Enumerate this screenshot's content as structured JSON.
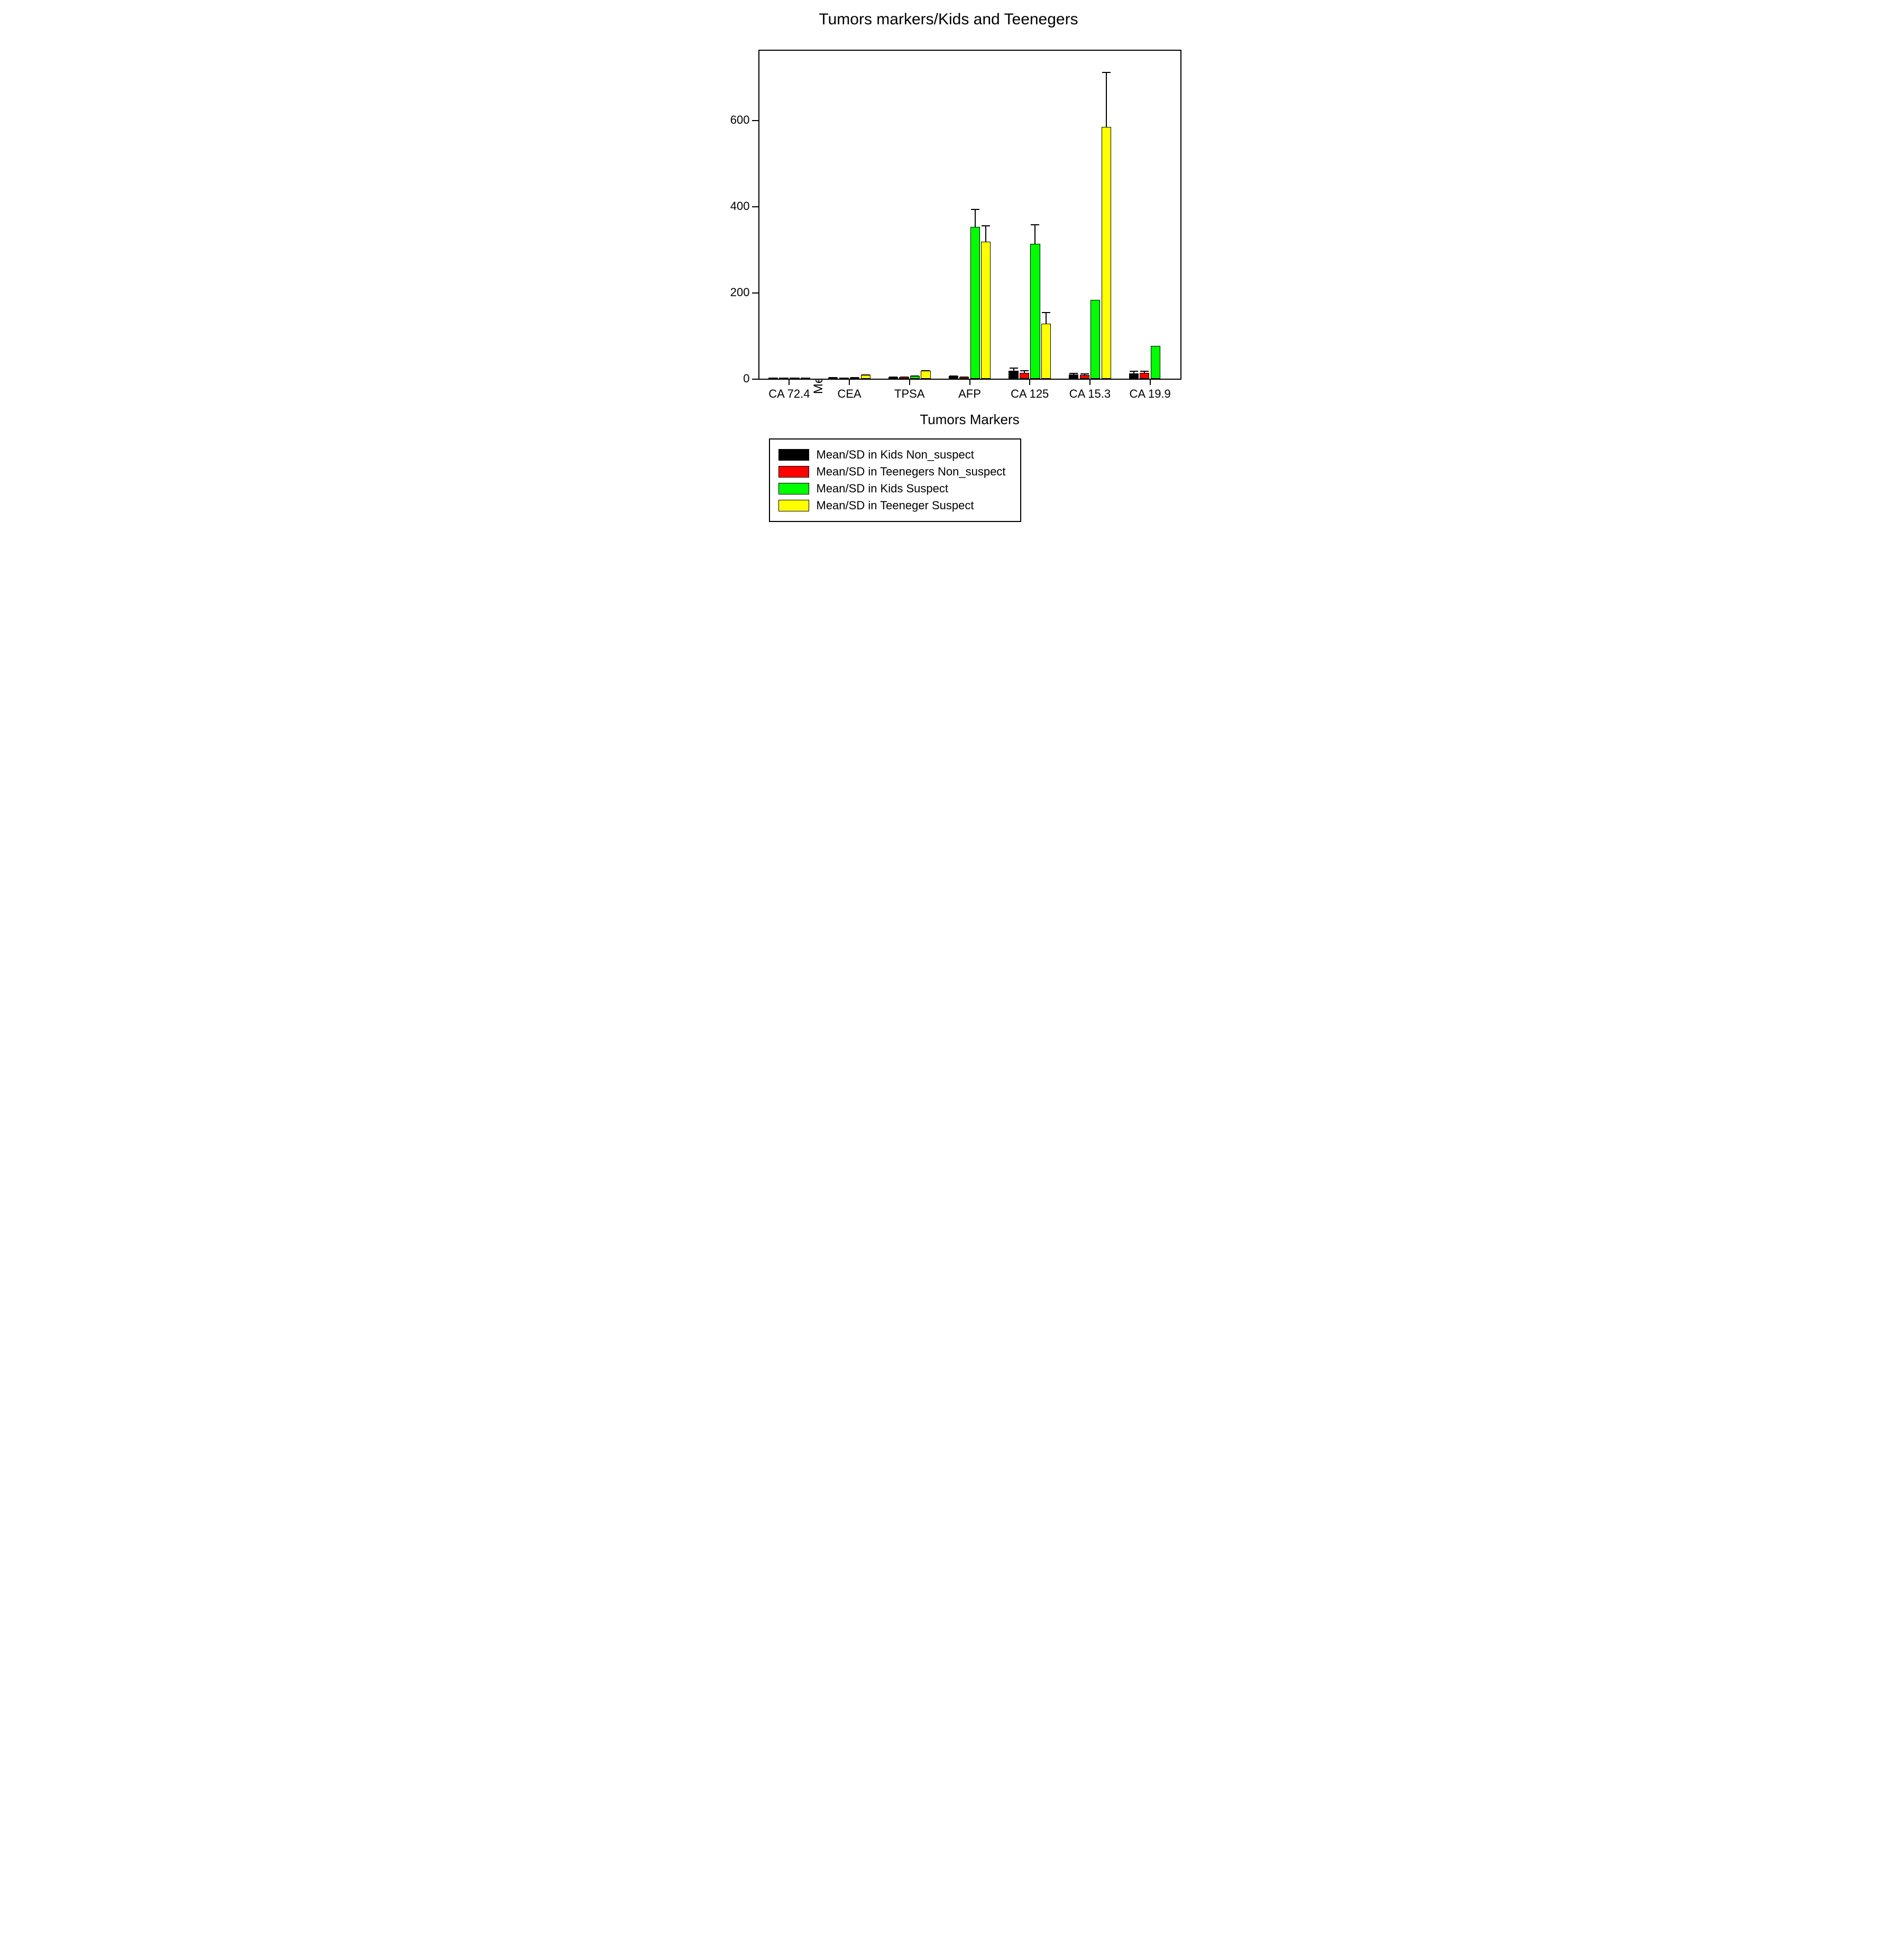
{
  "title": "Tumors markers/Kids and Teenegers",
  "ylabel": "Means/SD for groups(Kids/Teenegers)",
  "xlabel": "Tumors Markers",
  "yAxis": {
    "min": 0,
    "max": 760,
    "ticks": [
      0,
      200,
      400,
      600
    ]
  },
  "categories": [
    "CA 72.4",
    "CEA",
    "TPSA",
    "AFP",
    "CA 125",
    "CA 15.3",
    "CA 19.9"
  ],
  "series": [
    {
      "name": "Mean/SD in Kids Non_suspect",
      "color": "#000000",
      "values": [
        1,
        3,
        4,
        6,
        18,
        10,
        12
      ],
      "errors": [
        0.4,
        0.6,
        1,
        1,
        8,
        3,
        6
      ]
    },
    {
      "name": "Mean/SD in Teenegers Non_suspect",
      "color": "#ff0000",
      "values": [
        1,
        2,
        4,
        4,
        14,
        9,
        13
      ],
      "errors": [
        0.3,
        0.6,
        1,
        1,
        6,
        3,
        6
      ]
    },
    {
      "name": "Mean/SD in Kids Suspect",
      "color": "#00ff00",
      "values": [
        1,
        3,
        6,
        352,
        313,
        183,
        76
      ],
      "errors": [
        0.3,
        0.5,
        1,
        42,
        45,
        0,
        0
      ]
    },
    {
      "name": "Mean/SD in Teeneger Suspect",
      "color": "#ffff00",
      "values": [
        1,
        9,
        18,
        318,
        128,
        583,
        0
      ],
      "errors": [
        0.3,
        1,
        2,
        37,
        26,
        128,
        0
      ]
    }
  ],
  "layout": {
    "groupWidthFrac": 0.7,
    "barGapFrac": 0.02,
    "errorCapWidthPx": 16,
    "plotHeightPx": 620,
    "plotPaddingTopFrac": 0.02
  },
  "colors": {
    "background": "#ffffff",
    "axis": "#000000",
    "text": "#000000"
  },
  "fonts": {
    "title": 30,
    "axisLabel": 26,
    "tick": 22,
    "ylabel": 24,
    "legend": 22
  }
}
